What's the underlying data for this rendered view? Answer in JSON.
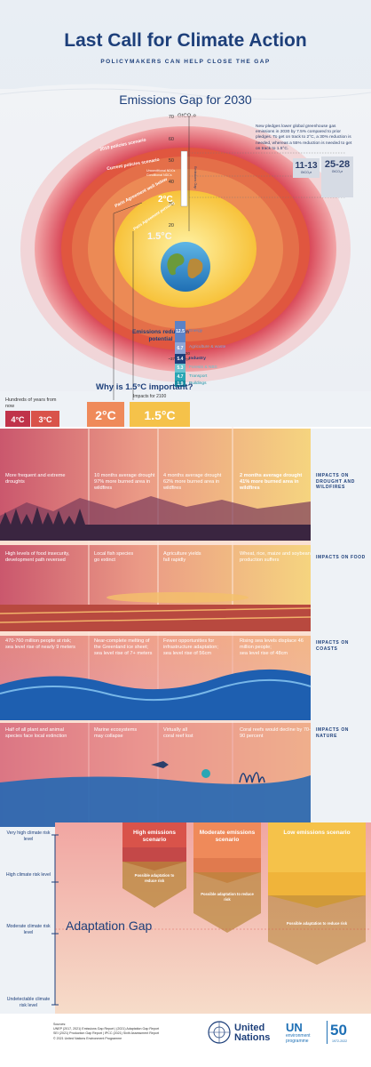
{
  "header": {
    "title": "Last Call for Climate Action",
    "subtitle": "POLICYMAKERS CAN HELP CLOSE THE GAP"
  },
  "emissions": {
    "title": "Emissions Gap for 2030",
    "axis_unit": "GtCO₂e",
    "ticks": [
      "70",
      "60",
      "50",
      "40",
      "30",
      "20"
    ],
    "note": "New pledges lower global greenhouse gas emissions in 2030 by 7.5% compared to prior pledges. To get on track to 2°C, a 30% reduction is needed, whereas a 55% reduction is needed to get on track to 1.5°C.",
    "gap_2c": "11-13",
    "gap_15c": "25-28",
    "gap_unit": "GtCO₂e",
    "scenario_2010": "2010 policies scenario",
    "scenario_current": "Current policies scenario",
    "unconditional": "Unconditional NDCs",
    "conditional": "Conditional NDCs",
    "paris_2c": "Paris Agreement well below",
    "deg_2c": "2°C",
    "paris_15c": "Paris Agreement pursuing",
    "deg_15c": "1.5°C",
    "gap_bar_label": "Emissions Gap"
  },
  "potential": {
    "title": "Emissions reduction potential",
    "sub_year": "for 2030",
    "sub_unit": "~37 GtCO₂e",
    "segments": [
      {
        "value": "12.5",
        "label": "Energy",
        "color": "#5b82c6"
      },
      {
        "value": "6.7",
        "label": "Agriculture & waste",
        "color": "#8da5d6"
      },
      {
        "value": "5.4",
        "label": "Industry",
        "color": "#1d3f7a"
      },
      {
        "value": "5.3",
        "label": "Forests & NBS",
        "color": "#6cc3cf"
      },
      {
        "value": "4.7",
        "label": "Transport",
        "color": "#2aa6b4"
      },
      {
        "value": "1.9",
        "label": "Buildings",
        "color": "#1a8da0"
      }
    ]
  },
  "why": {
    "title": "Why is 1.5°C important?",
    "sub": "Impacts for 2100",
    "hundreds": "Hundreds of years from now",
    "levels": [
      "4°C",
      "3°C",
      "2°C",
      "1.5°C"
    ]
  },
  "impacts": {
    "drought": {
      "label": "IMPACTS ON DROUGHT AND WILDFIRES",
      "c4": "More frequent and extreme droughts",
      "c3a": "10 months average drought",
      "c3b": "97% more burned area in wildfires",
      "c2a": "4 months average drought",
      "c2b": "62% more burned area in wildfires",
      "c15a": "2 months average drought",
      "c15b": "41% more burned area in wildfires"
    },
    "food": {
      "label": "IMPACTS ON FOOD",
      "c4": "High levels of food insecurity, development path reversed",
      "c3a": "Local fish species",
      "c3b": "go extinct",
      "c2a": "Agriculture yields",
      "c2b": "fall rapidly",
      "c15a": "Wheat, rice, maize and soybean",
      "c15b": "production suffers"
    },
    "coasts": {
      "label": "IMPACTS ON COASTS",
      "c4": "470-760 million people at risk; sea level rise of nearly 9 meters",
      "c3a": "Near-complete melting of the Greenland ice sheet;",
      "c3b": "sea level rise of 7+ meters",
      "c2a": "Fewer opportunities for infrastructure adaptation;",
      "c2b": "sea level rise of 56cm",
      "c15a": "Rising sea levels displace 46 million people;",
      "c15b": "sea level rise of 48cm"
    },
    "nature": {
      "label": "IMPACTS ON NATURE",
      "c4": "Half of all plant and animal species face local extinction",
      "c3a": "Marine ecosystems",
      "c3b": "may collapse",
      "c2a": "Virtually all",
      "c2b": "coral reef lost",
      "c15a": "Coral reefs would decline by 70-90 percent",
      "c15b": ""
    }
  },
  "adaptation": {
    "title": "Adaptation Gap",
    "risk_levels": [
      "Very high climate risk level",
      "High climate risk level",
      "Moderate climate risk level",
      "Undetectable climate risk level"
    ],
    "scenarios": [
      "High emissions scenario",
      "Moderate emissions scenario",
      "Low emissions scenario"
    ],
    "possible": "Possible adaptation to reduce risk"
  },
  "footer": {
    "sources_label": "Sources:",
    "sources_1": "UNEP (2017, 2021) Emissions Gap Report | (2021) Adaptation Gap Report",
    "sources_2": "SEI (2021) Production Gap Report | IPCC (2021) Sixth Assessment Report",
    "copyright": "© 2021 United Nations Environment Programme",
    "un_name_1": "United",
    "un_name_2": "Nations",
    "unep_un": "UN",
    "unep_sub_1": "environment",
    "unep_sub_2": "programme",
    "fifty": "50",
    "fifty_sub": "1972-2022"
  },
  "colors": {
    "navy": "#1d3f7a",
    "red_4c": "#c0334a",
    "red_3c": "#d9534a",
    "orange_2c": "#ef8a5a",
    "yellow_15c": "#f5c24a"
  }
}
